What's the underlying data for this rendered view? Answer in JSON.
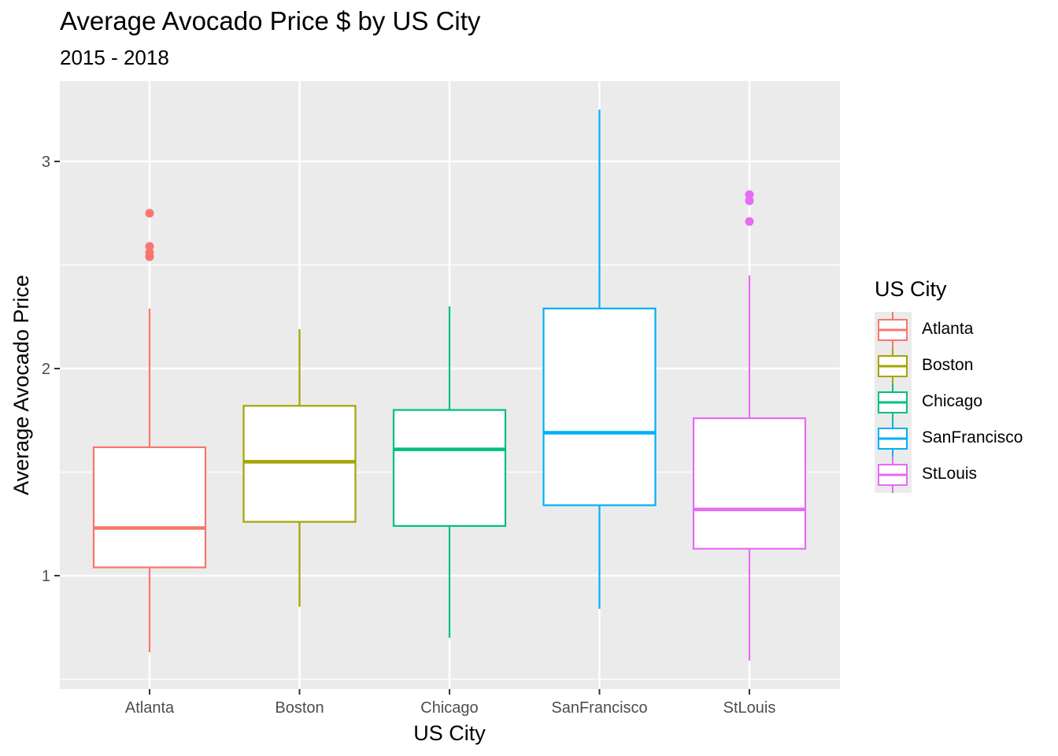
{
  "chart_data": {
    "type": "boxplot",
    "title": "Average Avocado Price $ by US City",
    "subtitle": "2015 - 2018",
    "xlabel": "US City",
    "ylabel": "Average Avocado Price",
    "ylim": [
      0.5,
      3.35
    ],
    "y_ticks": [
      1,
      2,
      3
    ],
    "y_tick_labels": [
      "1",
      "2",
      "3"
    ],
    "grid": true,
    "legend": {
      "title": "US City",
      "placement": "right"
    },
    "categories": [
      "Atlanta",
      "Boston",
      "Chicago",
      "SanFrancisco",
      "StLouis"
    ],
    "series": [
      {
        "name": "Atlanta",
        "color": "#F8766D",
        "min": 0.63,
        "q1": 1.04,
        "median": 1.23,
        "q3": 1.62,
        "max": 2.29,
        "outliers": [
          2.54,
          2.56,
          2.59,
          2.75
        ]
      },
      {
        "name": "Boston",
        "color": "#A3A500",
        "min": 0.85,
        "q1": 1.26,
        "median": 1.55,
        "q3": 1.82,
        "max": 2.19,
        "outliers": []
      },
      {
        "name": "Chicago",
        "color": "#00BF7D",
        "min": 0.7,
        "q1": 1.24,
        "median": 1.61,
        "q3": 1.8,
        "max": 2.3,
        "outliers": []
      },
      {
        "name": "SanFrancisco",
        "color": "#00B0F6",
        "min": 0.84,
        "q1": 1.34,
        "median": 1.69,
        "q3": 2.29,
        "max": 3.25,
        "outliers": []
      },
      {
        "name": "StLouis",
        "color": "#E76BF3",
        "min": 0.59,
        "q1": 1.13,
        "median": 1.32,
        "q3": 1.76,
        "max": 2.45,
        "outliers": [
          2.71,
          2.81,
          2.84
        ]
      }
    ]
  }
}
